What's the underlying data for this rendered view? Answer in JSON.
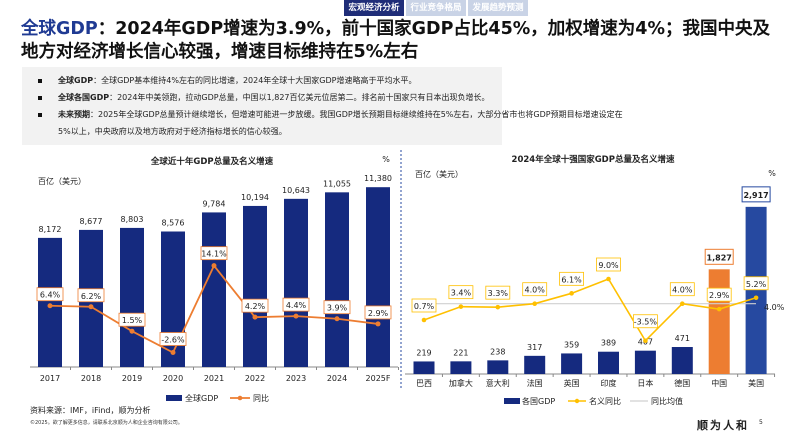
{
  "nav": {
    "tabs": [
      {
        "label": "宏观经济分析",
        "active": true
      },
      {
        "label": "行业竞争格局",
        "active": false
      },
      {
        "label": "发展趋势预测",
        "active": false
      }
    ]
  },
  "title": {
    "highlight": "全球GDP",
    "rest": "：2024年GDP增速为3.9%，前十国家GDP占比45%，加权增速为4%；我国中央及地方对经济增长信心较强，增速目标维持在5%左右"
  },
  "bullets": [
    {
      "bold": "全球GDP",
      "text": "：全球GDP基本维持4%左右的同比增速，2024年全球十大国家GDP增速略高于平均水平。"
    },
    {
      "bold": "全球各国GDP",
      "text": "：2024年中美领跑，拉动GDP总量，中国以1,827百亿美元位居第二。排名前十国家只有日本出现负增长。"
    },
    {
      "bold": "未来预期",
      "text": "：2025年全球GDP总量预计继续增长，但增速可能进一步放缓。我国GDP增长预期目标继续维持在5%左右，大部分省市也将GDP预期目标增速设定在",
      "cont": "5%以上，中央政府以及地方政府对于经济指标增长的信心较强。"
    }
  ],
  "chart_data": [
    {
      "type": "bar+line",
      "title": "全球近十年GDP总量及名义增速",
      "ylabel": "百亿（美元）",
      "y2label": "%",
      "categories": [
        "2017",
        "2018",
        "2019",
        "2020",
        "2021",
        "2022",
        "2023",
        "2024",
        "2025F"
      ],
      "series": [
        {
          "name": "全球GDP",
          "type": "bar",
          "color": "#152a7f",
          "values": [
            8172,
            8677,
            8803,
            8576,
            9784,
            10194,
            10643,
            11055,
            11380
          ],
          "labels": [
            "8,172",
            "8,677",
            "8,803",
            "8,576",
            "9,784",
            "10,194",
            "10,643",
            "11,055",
            "11,380"
          ]
        },
        {
          "name": "同比",
          "type": "line",
          "color": "#ed7d31",
          "values": [
            6.4,
            6.2,
            1.5,
            -2.6,
            14.1,
            4.2,
            4.4,
            3.9,
            2.9
          ],
          "labels": [
            "6.4%",
            "6.2%",
            "1.5%",
            "-2.6%",
            "14.1%",
            "4.2%",
            "4.4%",
            "3.9%",
            "2.9%"
          ]
        }
      ],
      "legend": "bottom"
    },
    {
      "type": "bar+line",
      "title": "2024年全球十强国家GDP总量及名义增速",
      "ylabel": "百亿（美元）",
      "y2label": "%",
      "categories": [
        "巴西",
        "加拿大",
        "意大利",
        "法国",
        "英国",
        "印度",
        "日本",
        "德国",
        "中国",
        "美国"
      ],
      "series": [
        {
          "name": "各国GDP",
          "type": "bar",
          "color": "#152a7f",
          "highlight_colors": {
            "中国": "#ed7d31",
            "美国": "#2649a0"
          },
          "values": [
            219,
            221,
            238,
            317,
            359,
            389,
            407,
            471,
            1827,
            2917
          ],
          "labels": [
            "219",
            "221",
            "238",
            "317",
            "359",
            "389",
            "407",
            "471",
            "1,827",
            "2,917"
          ]
        },
        {
          "name": "名义同比",
          "type": "line",
          "color": "#ffc000",
          "values": [
            0.7,
            3.4,
            3.3,
            4.0,
            6.1,
            9.0,
            -3.5,
            4.0,
            2.9,
            5.2
          ],
          "labels": [
            "0.7%",
            "3.4%",
            "3.3%",
            "4.0%",
            "6.1%",
            "9.0%",
            "-3.5%",
            "4.0%",
            "2.9%",
            "5.2%"
          ]
        },
        {
          "name": "同比均值",
          "type": "line",
          "color": "#d0d0d0",
          "value": 4.0,
          "label": "4.0%"
        }
      ],
      "legend": "bottom"
    }
  ],
  "footer": {
    "source": "资料来源：IMF，iFind，顺为分析",
    "copyright": "©2025。欲了解更多信息，请联系北京顺为人和企业咨询有限公司。",
    "logo": "顺为人和",
    "page": "5"
  }
}
